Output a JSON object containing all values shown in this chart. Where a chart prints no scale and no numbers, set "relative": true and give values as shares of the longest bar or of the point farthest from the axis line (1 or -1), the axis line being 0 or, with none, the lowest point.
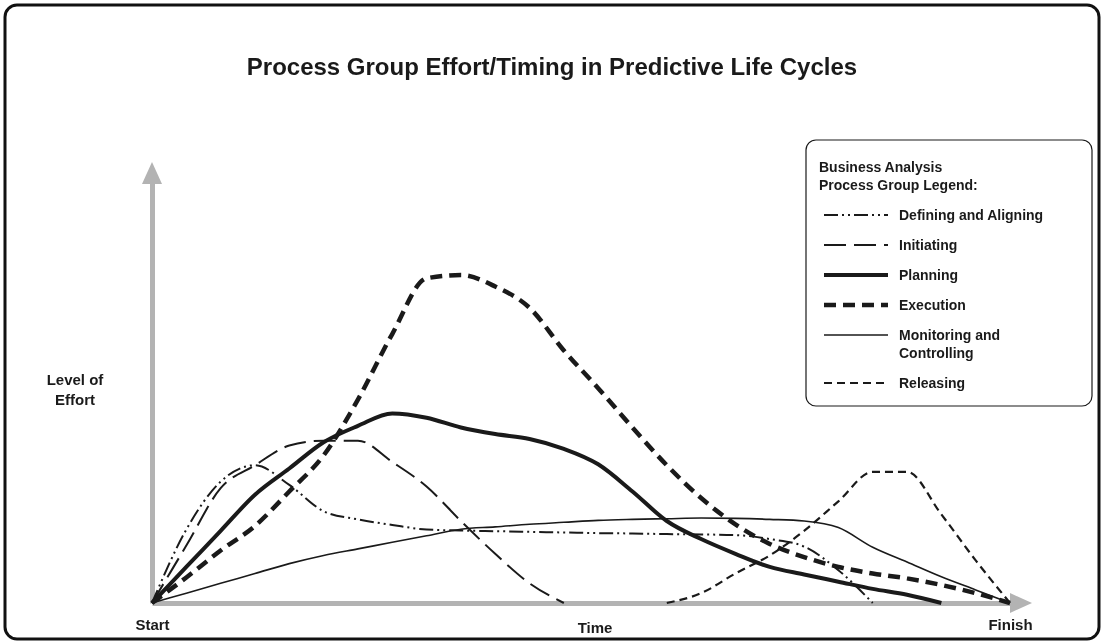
{
  "chart_data": {
    "type": "line",
    "title": "Process Group Effort/Timing in Predictive Life Cycles",
    "xlabel": "Time",
    "ylabel": "Level of Effort",
    "legend_title": "Business Analysis Process Group Legend:",
    "relative": true,
    "legend": "top right",
    "categories": [
      "Start",
      null,
      null,
      null,
      null,
      null,
      null,
      null,
      null,
      null,
      null,
      null,
      null,
      null,
      null,
      null,
      null,
      null,
      null,
      null,
      null,
      null,
      null,
      null,
      null,
      "Finish"
    ],
    "series": [
      {
        "name": "Defining and Aligning",
        "color": "#1a1a1a",
        "line_style": "dotted",
        "values": [
          0,
          0.224,
          0.37,
          0.42,
          0.36,
          0.28,
          0.255,
          0.238,
          0.224,
          0.221,
          0.219,
          0.217,
          0.215,
          0.213,
          0.212,
          0.21,
          0.209,
          0.207,
          0.195,
          0.172,
          0.1,
          0,
          null,
          null,
          null,
          null
        ]
      },
      {
        "name": "Initiating",
        "color": "#1a1a1a",
        "line_style": "dashed",
        "values": [
          0,
          0.175,
          0.35,
          0.42,
          0.48,
          0.495,
          0.495,
          0.43,
          0.355,
          0.25,
          0.15,
          0.06,
          0,
          null,
          null,
          null,
          null,
          null,
          null,
          null,
          null,
          null,
          null,
          null,
          null,
          null
        ]
      },
      {
        "name": "Planning",
        "color": "#1a1a1a",
        "line_style": "solid",
        "values": [
          0,
          0.11,
          0.22,
          0.33,
          0.41,
          0.49,
          0.54,
          0.578,
          0.565,
          0.535,
          0.515,
          0.5,
          0.47,
          0.423,
          0.34,
          0.25,
          0.195,
          0.15,
          0.11,
          0.087,
          0.065,
          0.043,
          0.025,
          0,
          null,
          null
        ]
      },
      {
        "name": "Execution",
        "color": "#1a1a1a",
        "line_style": "dashed",
        "values": [
          0,
          0.078,
          0.16,
          0.235,
          0.34,
          0.45,
          0.62,
          0.82,
          0.99,
          1,
          0.965,
          0.9,
          0.77,
          0.655,
          0.535,
          0.42,
          0.32,
          0.24,
          0.18,
          0.14,
          0.11,
          0.09,
          0.075,
          0.055,
          0.03,
          0
        ]
      },
      {
        "name": "Monitoring and Controlling",
        "color": "#1a1a1a",
        "line_style": "solid",
        "values": [
          0,
          0.03,
          0.06,
          0.09,
          0.12,
          0.145,
          0.165,
          0.185,
          0.205,
          0.225,
          0.232,
          0.24,
          0.246,
          0.252,
          0.255,
          0.257,
          0.259,
          0.258,
          0.255,
          0.25,
          0.23,
          0.17,
          0.125,
          0.08,
          0.04,
          0
        ]
      },
      {
        "name": "Releasing",
        "color": "#1a1a1a",
        "line_style": "dashed",
        "values": [
          null,
          null,
          null,
          null,
          null,
          null,
          null,
          null,
          null,
          null,
          null,
          null,
          null,
          null,
          null,
          0,
          0.03,
          0.09,
          0.145,
          0.22,
          0.31,
          0.4,
          0.4,
          0.27,
          0.13,
          0
        ]
      }
    ]
  }
}
